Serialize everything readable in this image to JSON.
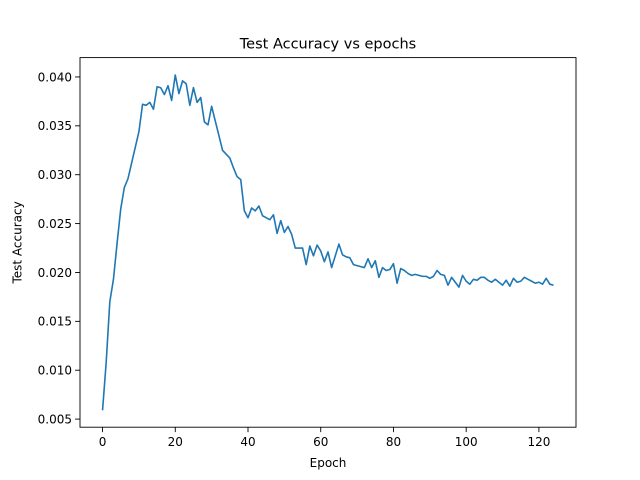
{
  "chart_data": {
    "type": "line",
    "title": "Test Accuracy vs epochs",
    "xlabel": "Epoch",
    "ylabel": "Test Accuracy",
    "xlim": [
      -6.2,
      130.2
    ],
    "ylim": [
      0.00417,
      0.04198
    ],
    "xticks": [
      0,
      20,
      40,
      60,
      80,
      100,
      120
    ],
    "yticks": [
      0.005,
      0.01,
      0.015,
      0.02,
      0.025,
      0.03,
      0.035,
      0.04
    ],
    "ytick_labels": [
      "0.005",
      "0.010",
      "0.015",
      "0.020",
      "0.025",
      "0.030",
      "0.035",
      "0.040"
    ],
    "grid": false,
    "line_color": "#1f77b4",
    "series": [
      {
        "values": [
          0.0059,
          0.0108,
          0.017,
          0.0193,
          0.023,
          0.0265,
          0.0287,
          0.0296,
          0.0312,
          0.0328,
          0.0344,
          0.0372,
          0.0371,
          0.0374,
          0.0367,
          0.039,
          0.0389,
          0.0382,
          0.0391,
          0.0376,
          0.0402,
          0.0383,
          0.0396,
          0.0393,
          0.0371,
          0.0389,
          0.0374,
          0.0379,
          0.0354,
          0.0351,
          0.037,
          0.0355,
          0.034,
          0.0325,
          0.0321,
          0.0317,
          0.0307,
          0.0298,
          0.0295,
          0.0263,
          0.0256,
          0.0266,
          0.0263,
          0.0268,
          0.0258,
          0.0256,
          0.0254,
          0.0259,
          0.024,
          0.0253,
          0.0241,
          0.0247,
          0.0239,
          0.0225,
          0.0225,
          0.0225,
          0.0208,
          0.0227,
          0.0217,
          0.0228,
          0.0222,
          0.0211,
          0.0221,
          0.0205,
          0.0217,
          0.0229,
          0.0218,
          0.0216,
          0.0215,
          0.0208,
          0.0207,
          0.0206,
          0.0205,
          0.0214,
          0.0205,
          0.0212,
          0.0195,
          0.0205,
          0.0202,
          0.0203,
          0.0209,
          0.0189,
          0.0204,
          0.0202,
          0.0199,
          0.0197,
          0.0198,
          0.0197,
          0.0196,
          0.0196,
          0.0194,
          0.0196,
          0.0202,
          0.0198,
          0.0197,
          0.0187,
          0.0195,
          0.019,
          0.0185,
          0.0197,
          0.0191,
          0.0188,
          0.0193,
          0.0192,
          0.0195,
          0.0195,
          0.0192,
          0.019,
          0.0193,
          0.019,
          0.0187,
          0.0192,
          0.0186,
          0.0194,
          0.019,
          0.0191,
          0.0195,
          0.0193,
          0.0191,
          0.0189,
          0.019,
          0.0188,
          0.0194,
          0.0188,
          0.0187
        ]
      }
    ]
  }
}
